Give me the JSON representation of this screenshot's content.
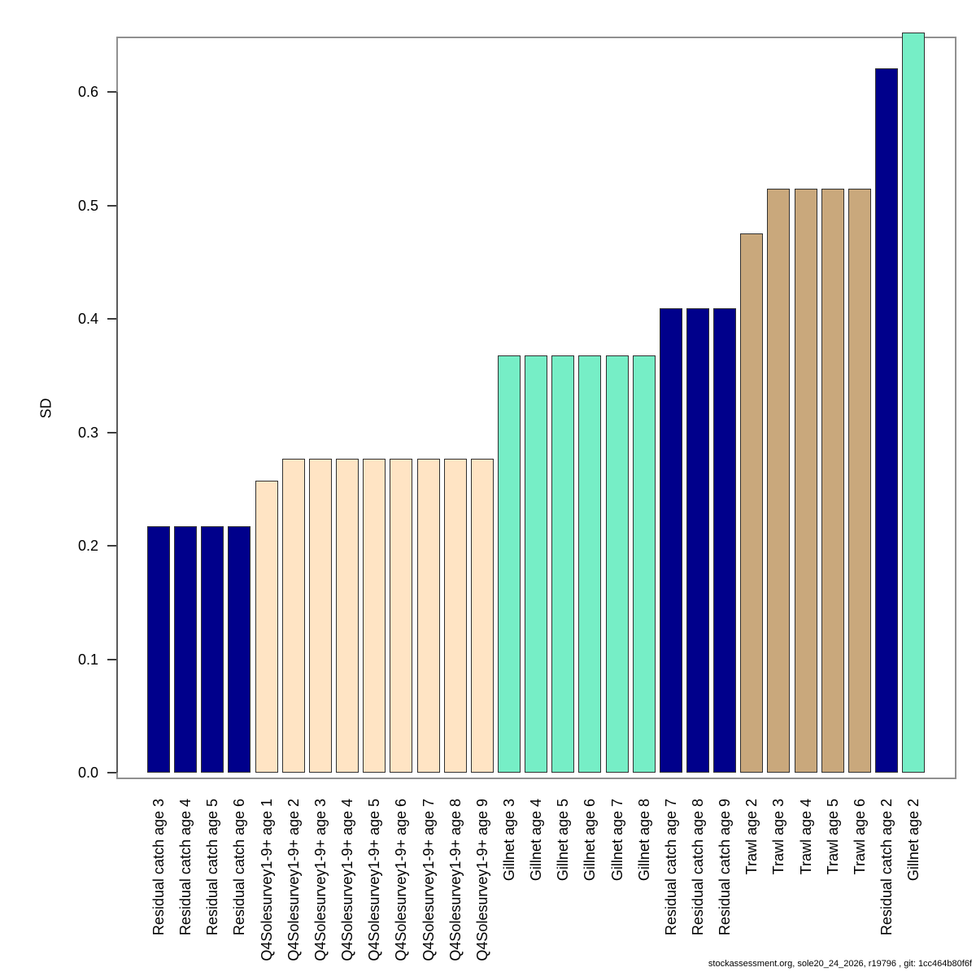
{
  "footer": {
    "text": "stockassessment.org, sole20_24_2026, r19796 , git: 1cc464b80f6f"
  },
  "chart_data": {
    "type": "bar",
    "title": "",
    "xlabel": "",
    "ylabel": "SD",
    "ylim": [
      0.0,
      0.65
    ],
    "yticks": [
      0.0,
      0.1,
      0.2,
      0.3,
      0.4,
      0.5,
      0.6
    ],
    "grid": false,
    "legend_position": "none",
    "tick_label_rotation": 90,
    "colors": {
      "navy": "#00008B",
      "bisque": "#FFE4C4",
      "aquamarine": "#76EEC6",
      "tan": "#C9A87C"
    },
    "bars": [
      {
        "label": "Residual catch age 3",
        "value": 0.217,
        "color": "navy"
      },
      {
        "label": "Residual catch age 4",
        "value": 0.217,
        "color": "navy"
      },
      {
        "label": "Residual catch age 5",
        "value": 0.217,
        "color": "navy"
      },
      {
        "label": "Residual catch age 6",
        "value": 0.217,
        "color": "navy"
      },
      {
        "label": "Q4Solesurvey1-9+ age 1",
        "value": 0.257,
        "color": "bisque"
      },
      {
        "label": "Q4Solesurvey1-9+ age 2",
        "value": 0.277,
        "color": "bisque"
      },
      {
        "label": "Q4Solesurvey1-9+ age 3",
        "value": 0.277,
        "color": "bisque"
      },
      {
        "label": "Q4Solesurvey1-9+ age 4",
        "value": 0.277,
        "color": "bisque"
      },
      {
        "label": "Q4Solesurvey1-9+ age 5",
        "value": 0.277,
        "color": "bisque"
      },
      {
        "label": "Q4Solesurvey1-9+ age 6",
        "value": 0.277,
        "color": "bisque"
      },
      {
        "label": "Q4Solesurvey1-9+ age 7",
        "value": 0.277,
        "color": "bisque"
      },
      {
        "label": "Q4Solesurvey1-9+ age 8",
        "value": 0.277,
        "color": "bisque"
      },
      {
        "label": "Q4Solesurvey1-9+ age 9",
        "value": 0.277,
        "color": "bisque"
      },
      {
        "label": "Gillnet age 3",
        "value": 0.368,
        "color": "aquamarine"
      },
      {
        "label": "Gillnet age 4",
        "value": 0.368,
        "color": "aquamarine"
      },
      {
        "label": "Gillnet age 5",
        "value": 0.368,
        "color": "aquamarine"
      },
      {
        "label": "Gillnet age 6",
        "value": 0.368,
        "color": "aquamarine"
      },
      {
        "label": "Gillnet age 7",
        "value": 0.368,
        "color": "aquamarine"
      },
      {
        "label": "Gillnet age 8",
        "value": 0.368,
        "color": "aquamarine"
      },
      {
        "label": "Residual catch age 7",
        "value": 0.409,
        "color": "navy"
      },
      {
        "label": "Residual catch age 8",
        "value": 0.409,
        "color": "navy"
      },
      {
        "label": "Residual catch age 9",
        "value": 0.409,
        "color": "navy"
      },
      {
        "label": "Trawl age 2",
        "value": 0.475,
        "color": "tan"
      },
      {
        "label": "Trawl age 3",
        "value": 0.515,
        "color": "tan"
      },
      {
        "label": "Trawl age 4",
        "value": 0.515,
        "color": "tan"
      },
      {
        "label": "Trawl age 5",
        "value": 0.515,
        "color": "tan"
      },
      {
        "label": "Trawl age 6",
        "value": 0.515,
        "color": "tan"
      },
      {
        "label": "Residual catch age 2",
        "value": 0.621,
        "color": "navy"
      },
      {
        "label": "Gillnet age 2",
        "value": 0.652,
        "color": "aquamarine"
      }
    ]
  }
}
